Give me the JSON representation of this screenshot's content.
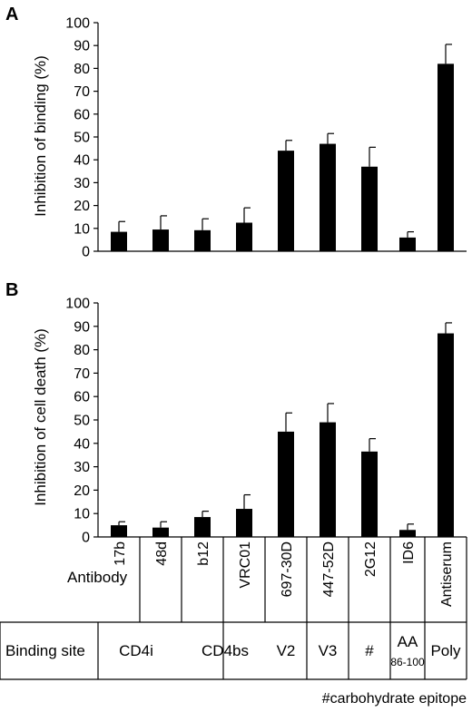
{
  "panels": [
    {
      "letter": "A",
      "chart_data": {
        "type": "bar",
        "ylabel": "Inhibition of binding (%)",
        "ylim": [
          0,
          100
        ],
        "yticks": [
          0,
          10,
          20,
          30,
          40,
          50,
          60,
          70,
          80,
          90,
          100
        ],
        "grid": false,
        "categories": [
          "17b",
          "48d",
          "b12",
          "VRC01",
          "697-30D",
          "447-52D",
          "2G12",
          "ID6",
          "Antiserum"
        ],
        "values": [
          8.5,
          9.5,
          9.2,
          12.5,
          44,
          47,
          37,
          6,
          82
        ],
        "errors": [
          4.5,
          6,
          5,
          6.5,
          4.5,
          4.5,
          8.5,
          2.5,
          8.5
        ]
      }
    },
    {
      "letter": "B",
      "chart_data": {
        "type": "bar",
        "ylabel": "Inhibition of cell death (%)",
        "ylim": [
          0,
          100
        ],
        "yticks": [
          0,
          10,
          20,
          30,
          40,
          50,
          60,
          70,
          80,
          90,
          100
        ],
        "grid": false,
        "categories": [
          "17b",
          "48d",
          "b12",
          "VRC01",
          "697-30D",
          "447-52D",
          "2G12",
          "ID6",
          "Antiserum"
        ],
        "values": [
          5,
          4,
          8.5,
          12,
          45,
          49,
          36.5,
          3,
          87
        ],
        "errors": [
          1.5,
          2.5,
          2.5,
          6,
          8,
          8,
          5.5,
          2.5,
          4.5
        ]
      }
    }
  ],
  "table": {
    "antibody_label": "Antibody",
    "antibodies": [
      "17b",
      "48d",
      "b12",
      "VRC01",
      "697-30D",
      "447-52D",
      "2G12",
      "ID6",
      "Antiserum"
    ],
    "binding_site_label": "Binding site",
    "binding_sites": [
      {
        "label": "CD4i",
        "sub": ""
      },
      {
        "label": "CD4bs",
        "sub": ""
      },
      {
        "label": "V2",
        "sub": ""
      },
      {
        "label": "V3",
        "sub": ""
      },
      {
        "label": "#",
        "sub": ""
      },
      {
        "label": "AA",
        "sub": "86-100"
      },
      {
        "label": "Poly",
        "sub": ""
      }
    ]
  },
  "footnote": "#carbohydrate epitope"
}
